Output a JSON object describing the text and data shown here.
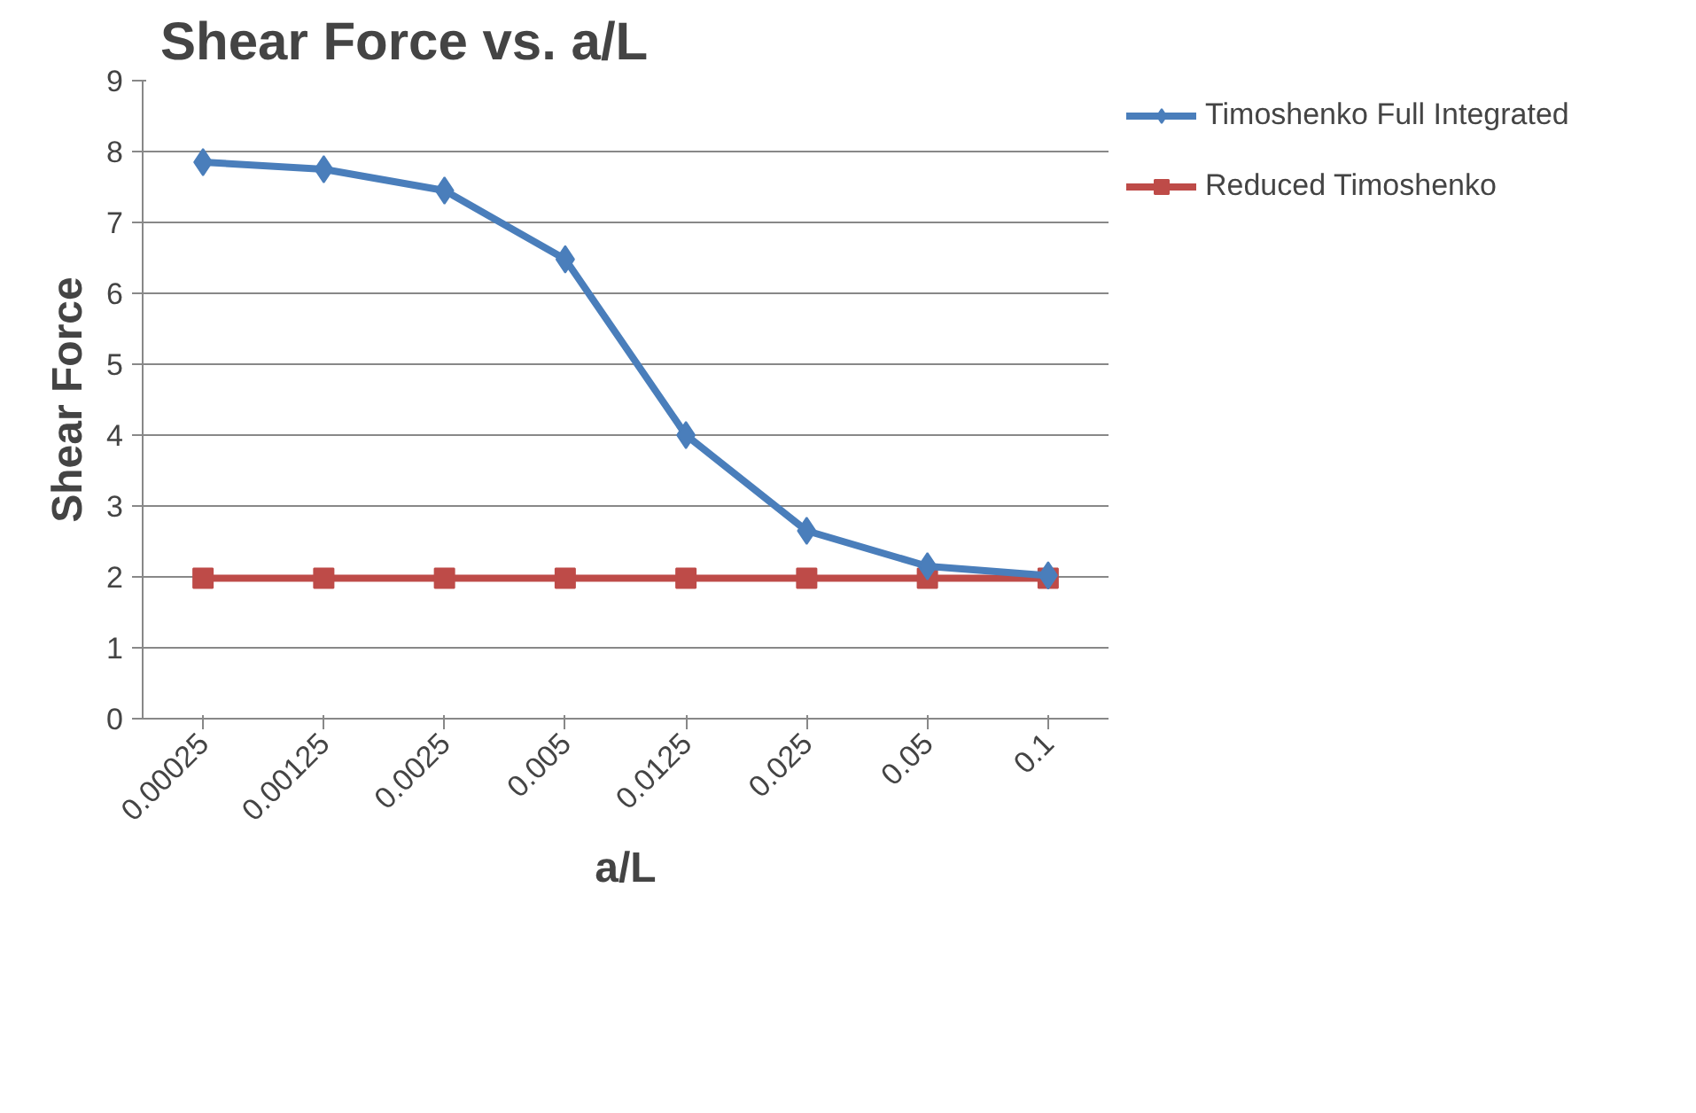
{
  "chart_data": {
    "type": "line",
    "title": "Shear Force vs. a/L",
    "xlabel": "a/L",
    "ylabel": "Shear Force",
    "categories": [
      "0.00025",
      "0.00125",
      "0.0025",
      "0.005",
      "0.0125",
      "0.025",
      "0.05",
      "0.1"
    ],
    "series": [
      {
        "name": "Timoshenko Full Integrated",
        "color": "#4a7ebb",
        "marker": "diamond",
        "values": [
          7.85,
          7.75,
          7.45,
          6.48,
          4.0,
          2.65,
          2.15,
          2.02
        ]
      },
      {
        "name": "Reduced Timoshenko",
        "color": "#be4b48",
        "marker": "square",
        "values": [
          1.98,
          1.98,
          1.98,
          1.98,
          1.98,
          1.98,
          1.98,
          1.98
        ]
      }
    ],
    "ylim": [
      0,
      9
    ],
    "yticks": [
      0,
      1,
      2,
      3,
      4,
      5,
      6,
      7,
      8,
      9
    ],
    "grid": "y",
    "legend": "right",
    "line_style": "solid"
  }
}
